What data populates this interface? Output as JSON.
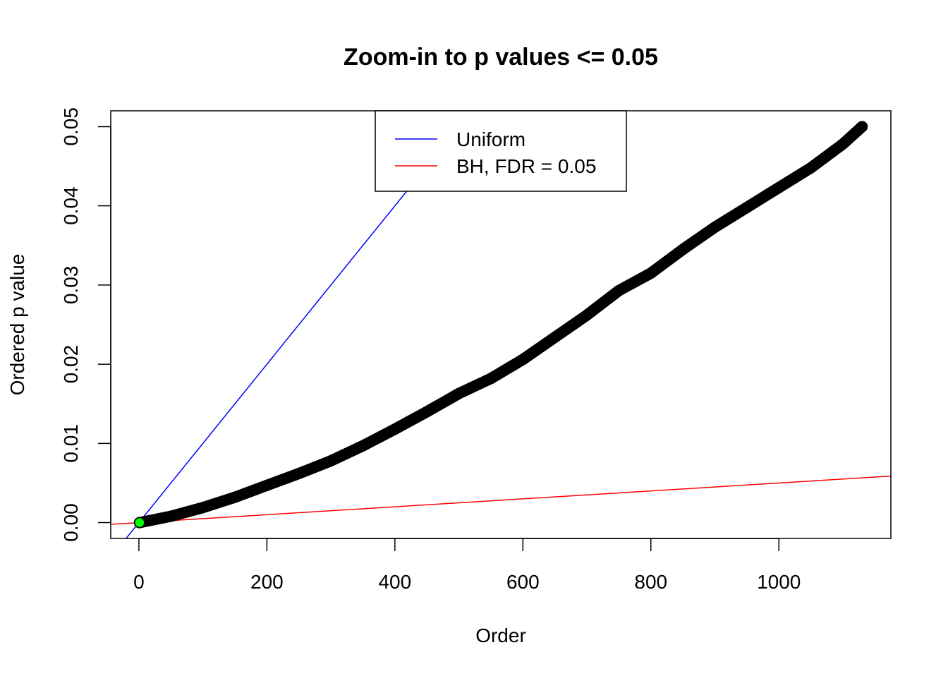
{
  "chart_data": {
    "type": "scatter",
    "title": "Zoom-in to p values <= 0.05",
    "xlabel": "Order",
    "ylabel": "Ordered p value",
    "xlim": [
      -44,
      1175
    ],
    "ylim": [
      -0.002,
      0.052
    ],
    "xticks": [
      0,
      200,
      400,
      600,
      800,
      1000
    ],
    "xtick_labels": [
      "0",
      "200",
      "400",
      "600",
      "800",
      "1000"
    ],
    "yticks": [
      0,
      0.01,
      0.02,
      0.03,
      0.04,
      0.05
    ],
    "ytick_labels": [
      "0.00",
      "0.01",
      "0.02",
      "0.03",
      "0.04",
      "0.05"
    ],
    "grid": false,
    "legend_position": "top-center",
    "points": {
      "color": "#000000",
      "x": [
        1,
        50,
        100,
        150,
        200,
        250,
        300,
        350,
        400,
        450,
        500,
        550,
        600,
        650,
        700,
        750,
        800,
        850,
        900,
        950,
        1000,
        1050,
        1100,
        1130
      ],
      "y": [
        0.0,
        0.0008,
        0.0019,
        0.0032,
        0.0047,
        0.0062,
        0.0078,
        0.0097,
        0.0118,
        0.014,
        0.0163,
        0.0182,
        0.0206,
        0.0234,
        0.0262,
        0.0293,
        0.0315,
        0.0345,
        0.0373,
        0.0398,
        0.0423,
        0.0448,
        0.0478,
        0.05
      ]
    },
    "highlight_point": {
      "x": 1,
      "y": 0.0,
      "color": "#00ff00"
    },
    "lines": [
      {
        "name": "Uniform",
        "color": "#0000ff",
        "slope": 0.0001,
        "intercept": 0
      },
      {
        "name": "BH, FDR = 0.05",
        "color": "#ff0000",
        "slope": 5e-06,
        "intercept": 0
      }
    ]
  }
}
